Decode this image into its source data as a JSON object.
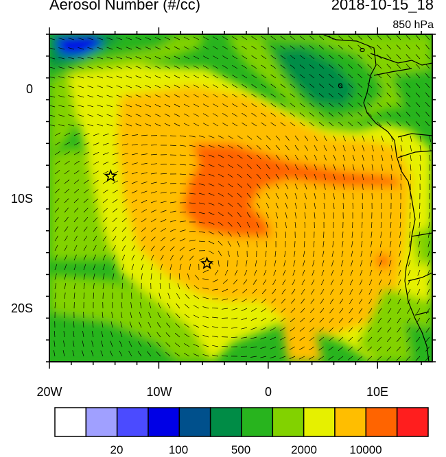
{
  "header": {
    "title": "Aerosol Number (#/cc)",
    "datetime": "2018-10-15_18",
    "level": "850 hPa"
  },
  "axes": {
    "lat_labels": [
      "0",
      "10S",
      "20S"
    ],
    "lon_labels": [
      "20W",
      "10W",
      "0",
      "10E"
    ],
    "lon_range": [
      -20,
      15
    ],
    "lat_range": [
      -25,
      5
    ]
  },
  "colorbar": {
    "colors": [
      "#ffffff",
      "#a0a0ff",
      "#4b4bff",
      "#0000e6",
      "#00508c",
      "#008c46",
      "#28b41e",
      "#82d200",
      "#e6f000",
      "#ffbe00",
      "#ff6400",
      "#ff1e1e"
    ],
    "labels": [
      "20",
      "100",
      "500",
      "2000",
      "10000"
    ]
  },
  "markers": [
    {
      "name": "star-marker-1",
      "lon": -14.4,
      "lat": -8.0
    },
    {
      "name": "star-marker-2",
      "lon": -5.6,
      "lat": -16.0
    }
  ]
}
